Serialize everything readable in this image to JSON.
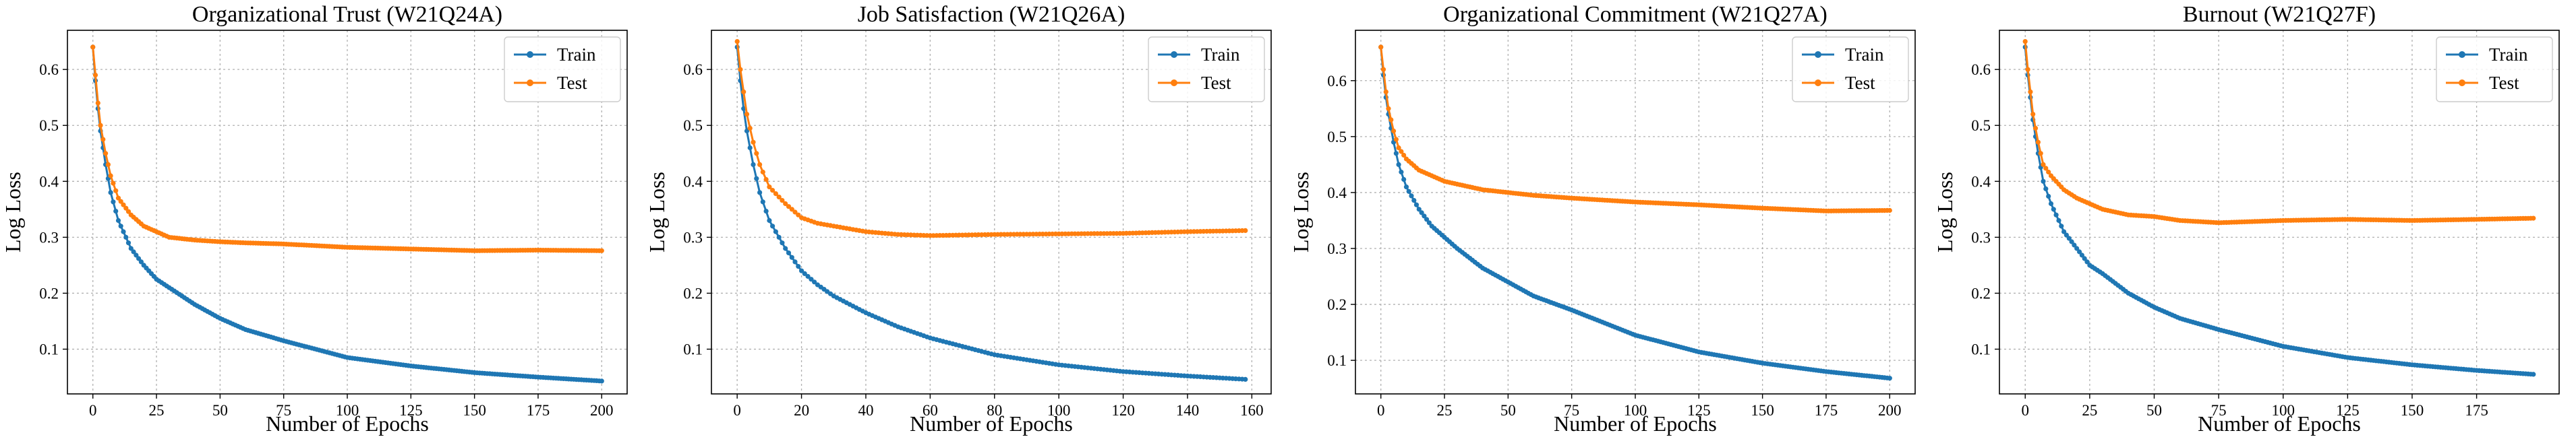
{
  "colors": {
    "train": "#1f77b4",
    "test": "#ff7f0e",
    "grid": "#b0b0b0"
  },
  "legend_placement": "top-right",
  "grid": true,
  "chart_data": [
    {
      "type": "line",
      "title": "Organizational Trust (W21Q24A)",
      "xlabel": "Number of Epochs",
      "ylabel": "Log Loss",
      "xlim": [
        -10,
        210
      ],
      "ylim": [
        0.02,
        0.67
      ],
      "xticks": [
        0,
        25,
        50,
        75,
        100,
        125,
        150,
        175,
        200
      ],
      "yticks": [
        0.1,
        0.2,
        0.3,
        0.4,
        0.5,
        0.6
      ],
      "x": [
        0,
        1,
        2,
        3,
        5,
        7,
        10,
        15,
        20,
        25,
        30,
        40,
        50,
        60,
        75,
        100,
        125,
        150,
        175,
        200
      ],
      "series": [
        {
          "name": "Train",
          "values": [
            0.64,
            0.58,
            0.53,
            0.49,
            0.43,
            0.38,
            0.33,
            0.28,
            0.25,
            0.225,
            0.21,
            0.18,
            0.155,
            0.135,
            0.115,
            0.085,
            0.07,
            0.058,
            0.05,
            0.043
          ]
        },
        {
          "name": "Test",
          "values": [
            0.64,
            0.59,
            0.54,
            0.5,
            0.45,
            0.41,
            0.37,
            0.34,
            0.32,
            0.31,
            0.3,
            0.295,
            0.292,
            0.29,
            0.288,
            0.282,
            0.279,
            0.276,
            0.277,
            0.276
          ]
        }
      ]
    },
    {
      "type": "line",
      "title": "Job Satisfaction (W21Q26A)",
      "xlabel": "Number of Epochs",
      "ylabel": "Log Loss",
      "xlim": [
        -8,
        166
      ],
      "ylim": [
        0.02,
        0.67
      ],
      "xticks": [
        0,
        20,
        40,
        60,
        80,
        100,
        120,
        140,
        160
      ],
      "yticks": [
        0.1,
        0.2,
        0.3,
        0.4,
        0.5,
        0.6
      ],
      "x": [
        0,
        1,
        2,
        3,
        5,
        7,
        10,
        15,
        20,
        25,
        30,
        40,
        50,
        60,
        80,
        100,
        120,
        140,
        158
      ],
      "series": [
        {
          "name": "Train",
          "values": [
            0.64,
            0.58,
            0.53,
            0.49,
            0.43,
            0.38,
            0.33,
            0.28,
            0.24,
            0.215,
            0.195,
            0.165,
            0.14,
            0.12,
            0.09,
            0.072,
            0.06,
            0.052,
            0.046
          ]
        },
        {
          "name": "Test",
          "values": [
            0.65,
            0.6,
            0.56,
            0.52,
            0.47,
            0.43,
            0.39,
            0.36,
            0.335,
            0.325,
            0.32,
            0.31,
            0.305,
            0.303,
            0.305,
            0.306,
            0.307,
            0.31,
            0.312
          ]
        }
      ]
    },
    {
      "type": "line",
      "title": "Organizational Commitment (W21Q27A)",
      "xlabel": "Number of Epochs",
      "ylabel": "Log Loss",
      "xlim": [
        -10,
        210
      ],
      "ylim": [
        0.04,
        0.69
      ],
      "xticks": [
        0,
        25,
        50,
        75,
        100,
        125,
        150,
        175,
        200
      ],
      "yticks": [
        0.1,
        0.2,
        0.3,
        0.4,
        0.5,
        0.6
      ],
      "x": [
        0,
        1,
        2,
        3,
        5,
        7,
        10,
        15,
        20,
        25,
        30,
        40,
        50,
        60,
        75,
        100,
        125,
        150,
        175,
        200
      ],
      "series": [
        {
          "name": "Train",
          "values": [
            0.66,
            0.61,
            0.57,
            0.54,
            0.49,
            0.45,
            0.41,
            0.37,
            0.34,
            0.32,
            0.3,
            0.265,
            0.24,
            0.215,
            0.19,
            0.145,
            0.115,
            0.095,
            0.08,
            0.068
          ]
        },
        {
          "name": "Test",
          "values": [
            0.66,
            0.62,
            0.58,
            0.55,
            0.51,
            0.48,
            0.46,
            0.44,
            0.43,
            0.42,
            0.415,
            0.405,
            0.4,
            0.395,
            0.39,
            0.383,
            0.378,
            0.372,
            0.367,
            0.368
          ]
        }
      ]
    },
    {
      "type": "line",
      "title": "Burnout (W21Q27F)",
      "xlabel": "Number of Epochs",
      "ylabel": "Log Loss",
      "xlim": [
        -10,
        207
      ],
      "ylim": [
        0.02,
        0.67
      ],
      "xticks": [
        0,
        25,
        50,
        75,
        100,
        125,
        150,
        175
      ],
      "yticks": [
        0.1,
        0.2,
        0.3,
        0.4,
        0.5,
        0.6
      ],
      "x": [
        0,
        1,
        2,
        3,
        5,
        7,
        10,
        15,
        20,
        25,
        30,
        40,
        50,
        60,
        75,
        100,
        125,
        150,
        175,
        197
      ],
      "series": [
        {
          "name": "Train",
          "values": [
            0.64,
            0.59,
            0.55,
            0.51,
            0.45,
            0.4,
            0.36,
            0.31,
            0.28,
            0.25,
            0.235,
            0.2,
            0.175,
            0.155,
            0.135,
            0.105,
            0.085,
            0.072,
            0.062,
            0.055
          ]
        },
        {
          "name": "Test",
          "values": [
            0.65,
            0.6,
            0.56,
            0.52,
            0.47,
            0.43,
            0.41,
            0.385,
            0.37,
            0.36,
            0.35,
            0.34,
            0.337,
            0.33,
            0.326,
            0.33,
            0.332,
            0.33,
            0.332,
            0.334
          ]
        }
      ]
    }
  ]
}
